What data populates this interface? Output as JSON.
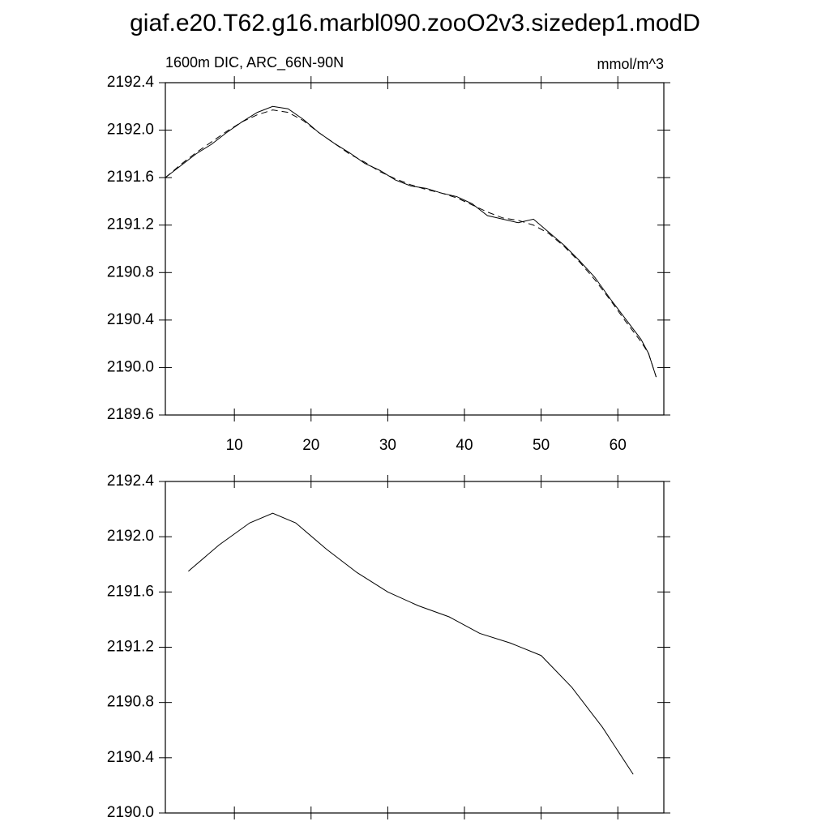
{
  "chart_data": [
    {
      "type": "line",
      "title": "giaf.e20.T62.g16.marbl090.zooO2v3.sizedep1.modD",
      "left_string": "1600m DIC, ARC_66N-90N",
      "right_string": "mmol/m^3",
      "x": [
        1,
        3,
        5,
        7,
        9,
        11,
        13,
        15,
        17,
        19,
        21,
        23,
        25,
        27,
        29,
        31,
        33,
        35,
        37,
        39,
        41,
        43,
        45,
        47,
        49,
        51,
        53,
        55,
        57,
        59,
        61,
        63,
        64,
        65
      ],
      "series": [
        {
          "color": "#000000",
          "dash": "solid",
          "values": [
            2191.6,
            2191.7,
            2191.8,
            2191.88,
            2191.98,
            2192.07,
            2192.15,
            2192.2,
            2192.18,
            2192.09,
            2191.98,
            2191.89,
            2191.81,
            2191.72,
            2191.66,
            2191.58,
            2191.53,
            2191.51,
            2191.47,
            2191.44,
            2191.38,
            2191.28,
            2191.25,
            2191.22,
            2191.25,
            2191.14,
            2191.03,
            2190.9,
            2190.76,
            2190.58,
            2190.41,
            2190.24,
            2190.12,
            2189.92
          ]
        },
        {
          "color": "#000000",
          "dash": "dashed",
          "values": [
            2191.6,
            2191.71,
            2191.81,
            2191.9,
            2191.99,
            2192.07,
            2192.13,
            2192.17,
            2192.15,
            2192.08,
            2191.98,
            2191.89,
            2191.8,
            2191.73,
            2191.65,
            2191.59,
            2191.54,
            2191.5,
            2191.47,
            2191.43,
            2191.37,
            2191.31,
            2191.26,
            2191.24,
            2191.2,
            2191.13,
            2191.02,
            2190.89,
            2190.74,
            2190.57,
            2190.39,
            2190.22,
            2190.12,
            2189.92
          ]
        }
      ],
      "xlim": [
        1,
        66
      ],
      "xticks": [
        10,
        20,
        30,
        40,
        50,
        60
      ],
      "show_xtick_labels": true,
      "ylim": [
        2189.6,
        2192.4
      ],
      "yticks": [
        {
          "value": 2189.6,
          "label": "2189.6"
        },
        {
          "value": 2190.0,
          "label": "2190.0"
        },
        {
          "value": 2190.4,
          "label": "2190.4"
        },
        {
          "value": 2190.8,
          "label": "2190.8"
        },
        {
          "value": 2191.2,
          "label": "2191.2"
        },
        {
          "value": 2191.6,
          "label": "2191.6"
        },
        {
          "value": 2192.0,
          "label": "2192.0"
        },
        {
          "value": 2192.4,
          "label": "2192.4"
        }
      ]
    },
    {
      "type": "line",
      "x": [
        4,
        8,
        12,
        15,
        18,
        22,
        26,
        30,
        34,
        38,
        42,
        46,
        50,
        54,
        58,
        62
      ],
      "series": [
        {
          "color": "#000000",
          "dash": "solid",
          "values": [
            2191.75,
            2191.94,
            2192.1,
            2192.17,
            2192.1,
            2191.91,
            2191.74,
            2191.6,
            2191.5,
            2191.42,
            2191.3,
            2191.23,
            2191.14,
            2190.91,
            2190.62,
            2190.28
          ]
        }
      ],
      "xlim": [
        1,
        66
      ],
      "xticks": [
        10,
        20,
        30,
        40,
        50,
        60
      ],
      "show_xtick_labels": false,
      "ylim": [
        2190.0,
        2192.4
      ],
      "yticks": [
        {
          "value": 2190.0,
          "label": "2190.0"
        },
        {
          "value": 2190.4,
          "label": "2190.4"
        },
        {
          "value": 2190.8,
          "label": "2190.8"
        },
        {
          "value": 2191.2,
          "label": "2191.2"
        },
        {
          "value": 2191.6,
          "label": "2191.6"
        },
        {
          "value": 2192.0,
          "label": "2192.0"
        },
        {
          "value": 2192.4,
          "label": "2192.4"
        }
      ]
    }
  ]
}
